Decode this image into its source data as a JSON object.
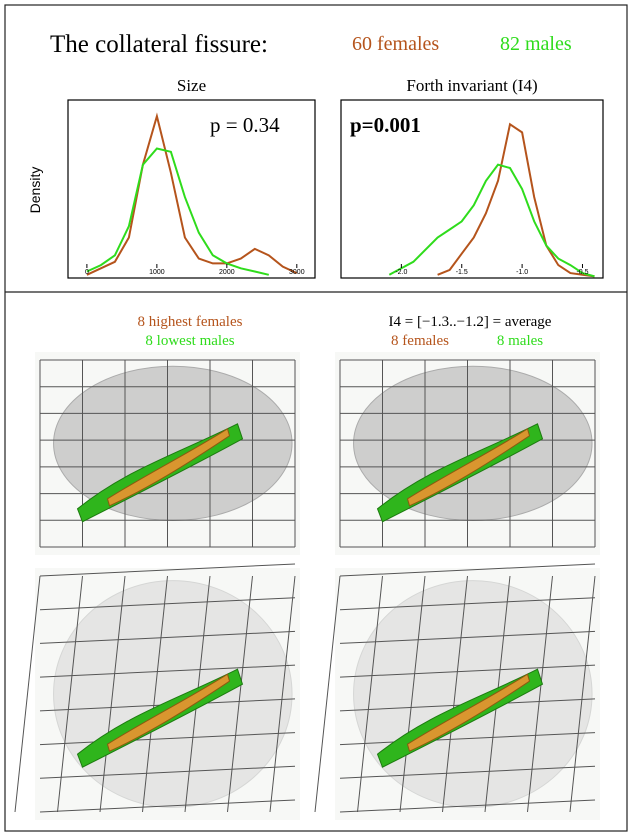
{
  "header": {
    "title": "The collateral fissure:",
    "group1": "60 females",
    "group2": "82 males",
    "color1": "#b5541c",
    "color2": "#2fdc1c"
  },
  "chart_data": [
    {
      "type": "line",
      "title": "Size",
      "y_label": "Density",
      "annotation": "p = 0.34",
      "x": [
        0,
        200,
        400,
        600,
        800,
        1000,
        1200,
        1400,
        1600,
        1800,
        2000,
        2200,
        2400,
        2600,
        2800,
        3000
      ],
      "series": [
        {
          "color": "#b5541c",
          "values": [
            0.02,
            0.06,
            0.1,
            0.25,
            0.7,
            1.0,
            0.65,
            0.25,
            0.12,
            0.09,
            0.09,
            0.12,
            0.18,
            0.14,
            0.07,
            0.03
          ]
        },
        {
          "color": "#2fdc1c",
          "values": [
            0.04,
            0.08,
            0.14,
            0.32,
            0.7,
            0.8,
            0.78,
            0.5,
            0.28,
            0.14,
            0.09,
            0.06,
            0.04,
            0.02,
            null,
            null
          ]
        }
      ],
      "xlim": [
        -270,
        3260
      ],
      "ylim": [
        0,
        1.1
      ],
      "xticks": [
        0,
        1000,
        2000,
        3000
      ]
    },
    {
      "type": "line",
      "title": "Forth invariant (I4)",
      "annotation": "p=0.001",
      "x": [
        -2.1,
        -1.9,
        -1.7,
        -1.6,
        -1.5,
        -1.4,
        -1.3,
        -1.2,
        -1.1,
        -1.0,
        -0.9,
        -0.8,
        -0.7,
        -0.6,
        -0.5,
        -0.4
      ],
      "series": [
        {
          "color": "#b5541c",
          "values": [
            null,
            null,
            0.02,
            0.05,
            0.15,
            0.25,
            0.4,
            0.6,
            0.95,
            0.9,
            0.5,
            0.2,
            0.08,
            0.03,
            0.02,
            0.01
          ]
        },
        {
          "color": "#2fdc1c",
          "values": [
            0.02,
            0.1,
            0.25,
            0.3,
            0.35,
            0.45,
            0.6,
            0.7,
            0.68,
            0.55,
            0.35,
            0.2,
            0.12,
            0.08,
            0.03,
            0.01
          ]
        }
      ],
      "xlim": [
        -2.5,
        -0.33
      ],
      "ylim": [
        0,
        1.1
      ],
      "xticks": [
        {
          "value": -2,
          "label": "-2.0"
        },
        {
          "value": -1.5,
          "label": "-1.5"
        },
        {
          "value": -1,
          "label": "-1.0"
        },
        {
          "value": -0.5,
          "label": "-0.5"
        }
      ]
    }
  ],
  "lower": {
    "left_line1": "8 highest females",
    "left_line2": "8 lowest males",
    "right_line1": "I4 = [−1.3..−1.2] = average",
    "right_line2a": "8 females",
    "right_line2b": "8 males"
  }
}
